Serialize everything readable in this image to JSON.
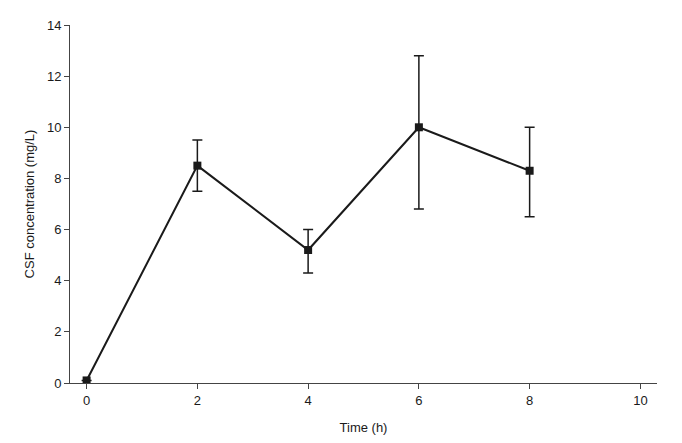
{
  "chart_data": {
    "type": "line",
    "x": [
      0,
      2,
      4,
      6,
      8
    ],
    "values": [
      0.1,
      8.5,
      5.2,
      10.0,
      8.3
    ],
    "error_lower": [
      0.0,
      1.0,
      0.9,
      3.2,
      1.8
    ],
    "error_upper": [
      0.0,
      1.0,
      0.8,
      2.8,
      1.7
    ],
    "xlabel": "Time (h)",
    "ylabel": "CSF concentration (mg/L)",
    "xlim": [
      -0.3,
      10.3
    ],
    "ylim": [
      0,
      14
    ],
    "xticks": [
      0,
      2,
      4,
      6,
      8,
      10
    ],
    "yticks": [
      0,
      2,
      4,
      6,
      8,
      10,
      12,
      14
    ],
    "color": "#1a1a1a",
    "marker": "square",
    "line_style": "solid",
    "grid": false
  }
}
